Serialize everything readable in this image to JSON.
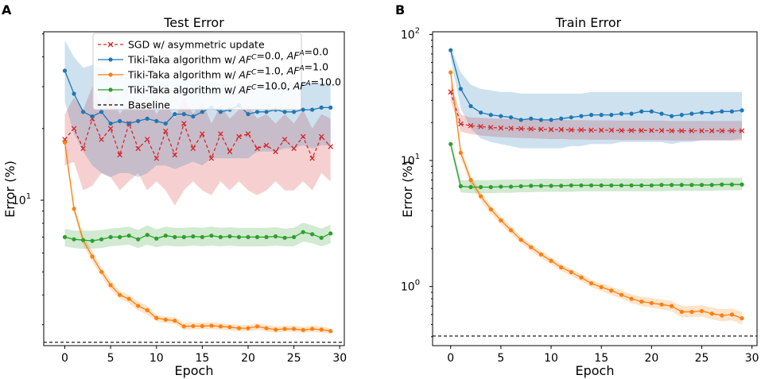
{
  "chart_data": [
    {
      "type": "line",
      "panel_label": "A",
      "title": "Test Error",
      "xlabel": "Epoch",
      "ylabel": "Error (%)",
      "yscale": "log",
      "xlim": [
        -2.3,
        30.5
      ],
      "ylim": [
        2.45,
        51
      ],
      "x_ticks": [
        "0",
        "5",
        "10",
        "15",
        "20",
        "25",
        "30"
      ],
      "y_ticks": [
        "10^1"
      ],
      "legend_position": "top",
      "baseline": {
        "name": "Baseline",
        "value": 2.53,
        "color": "#000000",
        "style": "dashed"
      },
      "legend": [
        {
          "label": "SGD w/ asymmetric update",
          "color": "#d62728",
          "style": "dashed-x"
        },
        {
          "label": "Tiki-Taka algorithm w/ AF^C=0.0, AF^A=0.0",
          "color": "#1f77b4",
          "style": "solid-dot"
        },
        {
          "label": "Tiki-Taka algorithm w/ AF^C=1.0, AF^A=1.0",
          "color": "#ff7f0e",
          "style": "solid-dot"
        },
        {
          "label": "Tiki-Taka algorithm w/ AF^C=10.0, AF^A=10.0",
          "color": "#2ca02c",
          "style": "solid-dot"
        },
        {
          "label": "Baseline",
          "color": "#000000",
          "style": "dashed"
        }
      ],
      "series": [
        {
          "name": "SGD w/ asymmetric update",
          "color": "#d62728",
          "marker": "x",
          "dashed": true,
          "values": [
            18,
            20,
            16.5,
            22,
            18,
            20,
            15.5,
            21,
            16.5,
            18,
            15,
            19.5,
            15.5,
            21,
            16.5,
            19,
            15,
            19,
            16,
            18.5,
            19,
            16.5,
            17,
            16,
            18,
            16.5,
            18.5,
            15,
            18.5,
            16.8
          ],
          "lower": [
            14,
            14.5,
            11,
            11.5,
            13,
            12.5,
            11,
            12,
            13,
            11,
            12,
            11,
            9.5,
            11,
            12,
            11,
            10.5,
            12,
            11,
            12,
            11,
            10.5,
            11,
            12,
            11,
            11,
            12,
            11,
            13,
            12
          ],
          "upper": [
            23,
            27,
            24,
            30,
            25,
            28,
            23,
            26,
            24,
            27,
            23,
            26,
            22,
            27,
            23,
            26,
            21,
            25,
            22,
            24,
            25,
            22,
            23,
            21,
            23,
            21,
            24,
            20,
            23,
            22
          ]
        },
        {
          "name": "Tiki-Taka algorithm w/ AF^C=0.0, AF^A=0.0",
          "color": "#1f77b4",
          "marker": "o",
          "dashed": false,
          "values": [
            35,
            28,
            23.5,
            22.5,
            23.5,
            21,
            21.5,
            21,
            21.5,
            22,
            21.5,
            21,
            23,
            23,
            22.5,
            23.5,
            24.5,
            23.5,
            24,
            25,
            23,
            23.5,
            23.5,
            24,
            23.5,
            23.5,
            24,
            24,
            24.5,
            24.5
          ],
          "lower": [
            26,
            19,
            16,
            14,
            13,
            12.5,
            13,
            13,
            12.5,
            13,
            14,
            14,
            13.5,
            14,
            14.5,
            14,
            15,
            15,
            15,
            15,
            15,
            16,
            16,
            16,
            16.5,
            16.5,
            17,
            16.5,
            17,
            17
          ],
          "upper": [
            47,
            40,
            36,
            37,
            36,
            34,
            34,
            33,
            33,
            32,
            32,
            32,
            32,
            32,
            32,
            31,
            32,
            31,
            31,
            31,
            31,
            31,
            31,
            31,
            31,
            31,
            31,
            31,
            31,
            31
          ]
        },
        {
          "name": "Tiki-Taka algorithm w/ AF^C=1.0, AF^A=1.0",
          "color": "#ff7f0e",
          "marker": "o",
          "dashed": false,
          "values": [
            17.5,
            9.2,
            6.8,
            5.8,
            5.0,
            4.4,
            4.0,
            3.85,
            3.6,
            3.45,
            3.2,
            3.15,
            3.12,
            2.95,
            2.96,
            2.96,
            2.97,
            2.95,
            2.93,
            2.9,
            2.9,
            2.95,
            2.9,
            2.86,
            2.88,
            2.88,
            2.85,
            2.88,
            2.86,
            2.82
          ],
          "lower": [
            16.5,
            8.8,
            6.5,
            5.5,
            4.8,
            4.2,
            3.85,
            3.7,
            3.45,
            3.3,
            3.1,
            3.05,
            3.02,
            2.86,
            2.87,
            2.87,
            2.88,
            2.86,
            2.84,
            2.81,
            2.81,
            2.86,
            2.81,
            2.78,
            2.8,
            2.8,
            2.77,
            2.8,
            2.78,
            2.75
          ],
          "upper": [
            18.5,
            9.6,
            7.1,
            6.1,
            5.2,
            4.6,
            4.15,
            4.0,
            3.75,
            3.6,
            3.3,
            3.25,
            3.22,
            3.05,
            3.06,
            3.06,
            3.07,
            3.05,
            3.02,
            2.99,
            2.99,
            3.04,
            2.99,
            2.95,
            2.97,
            2.97,
            2.94,
            2.97,
            2.95,
            2.9
          ]
        },
        {
          "name": "Tiki-Taka algorithm w/ AF^C=10.0, AF^A=10.0",
          "color": "#2ca02c",
          "marker": "o",
          "dashed": false,
          "values": [
            7.0,
            6.85,
            6.8,
            6.75,
            6.85,
            7.0,
            7.0,
            7.1,
            6.85,
            7.15,
            6.9,
            7.1,
            7.0,
            7.0,
            7.05,
            7.0,
            7.1,
            7.0,
            7.05,
            7.0,
            7.0,
            7.0,
            7.0,
            7.05,
            6.95,
            7.0,
            7.35,
            7.2,
            6.95,
            7.25
          ],
          "lower": [
            6.4,
            6.3,
            6.25,
            6.25,
            6.3,
            6.4,
            6.45,
            6.5,
            6.3,
            6.5,
            6.35,
            6.45,
            6.4,
            6.4,
            6.45,
            6.4,
            6.45,
            6.4,
            6.45,
            6.4,
            6.4,
            6.4,
            6.4,
            6.45,
            6.4,
            6.4,
            6.7,
            6.6,
            6.4,
            6.6
          ],
          "upper": [
            7.6,
            7.45,
            7.45,
            7.45,
            7.5,
            7.6,
            7.65,
            7.75,
            7.5,
            7.85,
            7.55,
            7.75,
            7.65,
            7.65,
            7.7,
            7.65,
            7.75,
            7.65,
            7.7,
            7.65,
            7.65,
            7.65,
            7.65,
            7.7,
            7.6,
            7.65,
            8.05,
            7.85,
            7.6,
            7.9
          ]
        }
      ]
    },
    {
      "type": "line",
      "panel_label": "B",
      "title": "Train Error",
      "xlabel": "Epoch",
      "ylabel": "Error (%)",
      "yscale": "log",
      "xlim": [
        -1.8,
        30.5
      ],
      "ylim": [
        0.34,
        105
      ],
      "x_ticks": [
        "0",
        "5",
        "10",
        "15",
        "20",
        "25",
        "30"
      ],
      "y_ticks": [
        "10^0",
        "10^1",
        "10^2"
      ],
      "baseline": {
        "name": "Baseline",
        "value": 0.405,
        "color": "#000000",
        "style": "dashed"
      },
      "series": [
        {
          "name": "SGD w/ asymmetric update",
          "color": "#d62728",
          "marker": "x",
          "dashed": true,
          "values": [
            35,
            19.5,
            18.9,
            18.6,
            18.3,
            18.1,
            18,
            17.9,
            17.8,
            17.7,
            17.6,
            17.6,
            17.5,
            17.5,
            17.4,
            17.4,
            17.4,
            17.3,
            17.3,
            17.3,
            17.3,
            17.3,
            17.2,
            17.2,
            17.2,
            17.2,
            17.2,
            17.2,
            17.2,
            17.2
          ],
          "lower": [
            30,
            17,
            16.2,
            15.8,
            15.5,
            15.3,
            15.2,
            15.1,
            15,
            14.9,
            14.8,
            14.8,
            14.7,
            14.7,
            14.6,
            14.6,
            14.6,
            14.5,
            14.5,
            14.5,
            14.5,
            14.5,
            14.4,
            14.4,
            14.4,
            14.4,
            14.4,
            14.4,
            14.4,
            14.4
          ],
          "upper": [
            41,
            23,
            22,
            21.8,
            21.6,
            21.4,
            21.3,
            21.2,
            21.1,
            21,
            21,
            21,
            20.9,
            20.9,
            20.8,
            20.8,
            20.8,
            20.7,
            20.7,
            20.7,
            20.7,
            20.7,
            20.6,
            20.6,
            20.6,
            20.6,
            20.6,
            20.6,
            20.6,
            20.6
          ]
        },
        {
          "name": "Tiki-Taka algorithm w/ AF^C=0.0, AF^A=0.0",
          "color": "#1f77b4",
          "marker": "o",
          "dashed": false,
          "values": [
            75,
            37,
            27,
            24,
            23,
            22.5,
            22,
            21,
            21.5,
            21,
            21,
            21.5,
            22,
            22.5,
            23,
            23,
            23,
            23.5,
            23.5,
            24.5,
            24.5,
            23.5,
            22.5,
            23,
            23.5,
            24,
            24,
            24.5,
            24.5,
            25
          ],
          "lower": [
            65,
            26,
            18,
            15,
            14,
            13.5,
            13,
            12.5,
            12.5,
            12.5,
            12.5,
            12.5,
            13,
            13,
            13.5,
            13.5,
            13.5,
            14,
            14,
            14,
            14,
            14,
            13.5,
            14,
            14,
            14.5,
            14.5,
            14.5,
            14.5,
            15
          ],
          "upper": [
            80,
            50,
            40,
            37,
            36,
            35,
            35,
            34,
            34,
            34,
            34,
            34,
            34,
            34,
            35,
            35,
            35,
            35,
            35,
            35,
            35,
            35,
            35,
            35,
            35,
            35,
            35,
            35,
            35,
            35
          ]
        },
        {
          "name": "Tiki-Taka algorithm w/ AF^C=1.0, AF^A=1.0",
          "color": "#ff7f0e",
          "marker": "o",
          "dashed": false,
          "values": [
            50,
            11.5,
            7.0,
            5.2,
            4.1,
            3.35,
            2.8,
            2.35,
            2.05,
            1.8,
            1.6,
            1.42,
            1.3,
            1.18,
            1.06,
            0.99,
            0.93,
            0.86,
            0.8,
            0.76,
            0.74,
            0.72,
            0.7,
            0.63,
            0.63,
            0.64,
            0.61,
            0.59,
            0.6,
            0.56
          ],
          "lower": [
            46,
            10.5,
            6.4,
            4.8,
            3.8,
            3.1,
            2.6,
            2.2,
            1.92,
            1.68,
            1.5,
            1.33,
            1.22,
            1.1,
            0.99,
            0.92,
            0.86,
            0.8,
            0.74,
            0.7,
            0.68,
            0.66,
            0.64,
            0.57,
            0.57,
            0.58,
            0.55,
            0.53,
            0.54,
            0.5
          ],
          "upper": [
            54,
            12.6,
            7.6,
            5.6,
            4.4,
            3.6,
            3.0,
            2.5,
            2.18,
            1.92,
            1.7,
            1.51,
            1.38,
            1.26,
            1.13,
            1.06,
            1.0,
            0.93,
            0.87,
            0.83,
            0.81,
            0.79,
            0.77,
            0.7,
            0.7,
            0.71,
            0.68,
            0.66,
            0.67,
            0.63
          ]
        },
        {
          "name": "Tiki-Taka algorithm w/ AF^C=10.0, AF^A=10.0",
          "color": "#2ca02c",
          "marker": "o",
          "dashed": false,
          "values": [
            13.5,
            6.25,
            6.15,
            6.15,
            6.15,
            6.2,
            6.2,
            6.25,
            6.3,
            6.3,
            6.3,
            6.3,
            6.35,
            6.35,
            6.35,
            6.35,
            6.35,
            6.35,
            6.35,
            6.35,
            6.35,
            6.4,
            6.4,
            6.4,
            6.4,
            6.4,
            6.4,
            6.45,
            6.45,
            6.45
          ],
          "lower": [
            12.5,
            5.6,
            5.5,
            5.5,
            5.5,
            5.55,
            5.55,
            5.6,
            5.6,
            5.65,
            5.65,
            5.65,
            5.65,
            5.7,
            5.7,
            5.7,
            5.7,
            5.7,
            5.7,
            5.7,
            5.7,
            5.7,
            5.75,
            5.75,
            5.75,
            5.75,
            5.75,
            5.8,
            5.8,
            5.8
          ],
          "upper": [
            14.5,
            7.0,
            7.0,
            7.0,
            7.0,
            7.05,
            7.05,
            7.1,
            7.1,
            7.15,
            7.15,
            7.15,
            7.15,
            7.2,
            7.2,
            7.2,
            7.2,
            7.2,
            7.2,
            7.2,
            7.2,
            7.25,
            7.25,
            7.25,
            7.25,
            7.25,
            7.25,
            7.3,
            7.3,
            7.3
          ]
        }
      ]
    }
  ]
}
